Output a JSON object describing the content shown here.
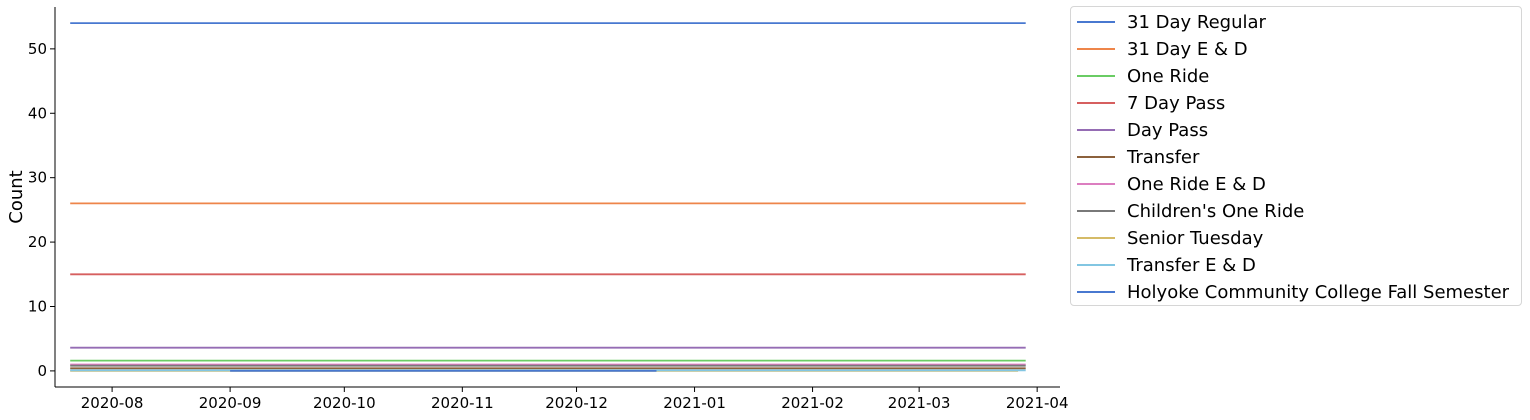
{
  "chart_data": {
    "type": "line",
    "title": "",
    "xlabel": "",
    "ylabel": "Count",
    "x_range": [
      "2020-07-17",
      "2021-04-07"
    ],
    "ylim": [
      -2.5,
      56.5
    ],
    "y_ticks": [
      0,
      10,
      20,
      30,
      40,
      50
    ],
    "x_ticks": [
      "2020-08",
      "2020-09",
      "2020-10",
      "2020-11",
      "2020-12",
      "2021-01",
      "2021-02",
      "2021-03",
      "2021-04"
    ],
    "grid": false,
    "legend_position": "outside-right",
    "series": [
      {
        "name": "31 Day Regular",
        "color": "#4878d0",
        "x": [
          "2020-07-21",
          "2021-03-29"
        ],
        "y": [
          54,
          54
        ]
      },
      {
        "name": "31 Day E & D",
        "color": "#ee854a",
        "x": [
          "2020-07-21",
          "2021-03-29"
        ],
        "y": [
          26,
          26
        ]
      },
      {
        "name": "One Ride",
        "color": "#6acc64",
        "x": [
          "2020-07-21",
          "2021-03-29"
        ],
        "y": [
          1.6,
          1.6
        ]
      },
      {
        "name": "7 Day Pass",
        "color": "#d65f5f",
        "x": [
          "2020-07-21",
          "2021-03-29"
        ],
        "y": [
          15,
          15
        ]
      },
      {
        "name": "Day Pass",
        "color": "#956cb4",
        "x": [
          "2020-07-21",
          "2021-03-29"
        ],
        "y": [
          3.6,
          3.6
        ]
      },
      {
        "name": "Transfer",
        "color": "#8c613c",
        "x": [
          "2020-07-21",
          "2021-03-29"
        ],
        "y": [
          0.4,
          0.4
        ]
      },
      {
        "name": "One Ride E & D",
        "color": "#dc7ec0",
        "x": [
          "2020-07-21",
          "2021-03-29"
        ],
        "y": [
          1.0,
          1.0
        ]
      },
      {
        "name": "Children's One Ride",
        "color": "#797979",
        "x": [
          "2020-07-21",
          "2021-03-29"
        ],
        "y": [
          0.8,
          0.8
        ]
      },
      {
        "name": "Senior Tuesday",
        "color": "#d5bb67",
        "x": [
          "2020-07-21",
          "2021-03-27"
        ],
        "y": [
          0,
          0
        ]
      },
      {
        "name": "Transfer E & D",
        "color": "#82c6e2",
        "x": [
          "2020-07-21",
          "2021-03-29"
        ],
        "y": [
          0.1,
          0.1
        ]
      },
      {
        "name": "Holyoke Community College Fall Semester",
        "color": "#4878d0",
        "x": [
          "2020-09-01",
          "2020-12-22"
        ],
        "y": [
          0,
          0
        ]
      }
    ]
  }
}
